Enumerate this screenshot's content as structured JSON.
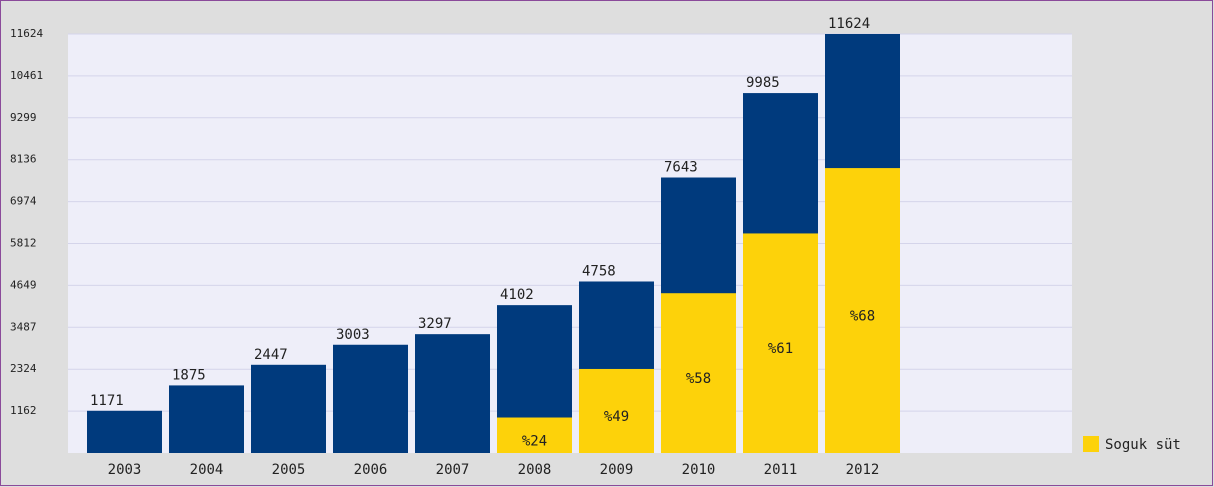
{
  "chart_data": {
    "type": "bar",
    "categories": [
      "2003",
      "2004",
      "2005",
      "2006",
      "2007",
      "2008",
      "2009",
      "2010",
      "2011",
      "2012"
    ],
    "values": [
      1171,
      1875,
      2447,
      3003,
      3297,
      4102,
      4758,
      7643,
      9985,
      11624
    ],
    "color": "#003a7d",
    "series": [
      {
        "name": "Soguk süt",
        "color": "#fdd20a",
        "values": [
          null,
          null,
          null,
          null,
          null,
          24,
          49,
          58,
          61,
          68
        ],
        "value_labels": [
          null,
          null,
          null,
          null,
          null,
          "%24",
          "%49",
          "%58",
          "%61",
          "%68"
        ]
      }
    ],
    "ylim": [
      0,
      11624
    ],
    "yticks": [
      1162,
      2324,
      3487,
      4649,
      5812,
      6974,
      8136,
      9299,
      10461,
      11624
    ],
    "grid": true,
    "legend": "bottom-right"
  }
}
